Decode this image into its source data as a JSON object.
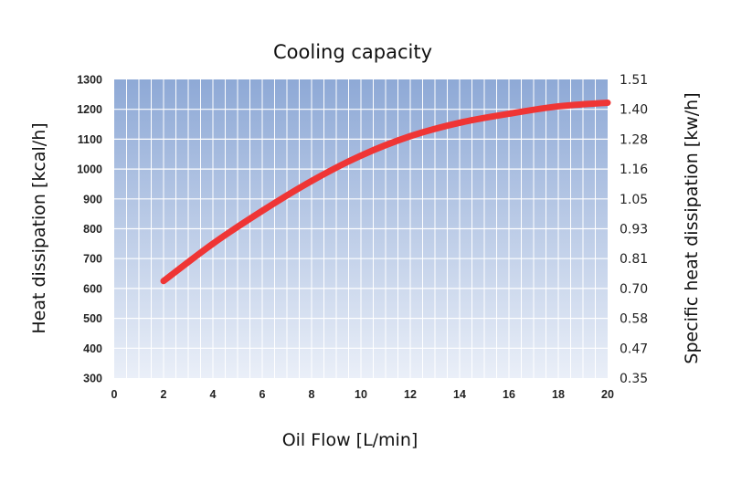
{
  "chart_data": {
    "type": "line",
    "title": "Cooling capacity",
    "xlabel": "Oil Flow [L/min]",
    "ylabel": "Heat dissipation [kcal/h]",
    "ylabel_right": "Specific heat dissipation [kw/h]",
    "xlim": [
      0,
      20
    ],
    "ylim": [
      300,
      1300
    ],
    "x_ticks": [
      "0",
      "2",
      "4",
      "6",
      "8",
      "10",
      "12",
      "14",
      "16",
      "18",
      "20"
    ],
    "y_ticks": [
      "300",
      "400",
      "500",
      "600",
      "700",
      "800",
      "900",
      "1000",
      "1100",
      "1200",
      "1300"
    ],
    "y2_ticks": [
      "0.35",
      "0.47",
      "0.58",
      "0.70",
      "0.81",
      "0.93",
      "1.05",
      "1.16",
      "1.28",
      "1.40",
      "1.51"
    ],
    "grid": true,
    "x": [
      2,
      4,
      6,
      8,
      10,
      12,
      14,
      16,
      18,
      20
    ],
    "series": [
      {
        "values": [
          625,
          750,
          860,
          960,
          1045,
          1110,
          1155,
          1185,
          1210,
          1222
        ],
        "color": "#ef3535"
      }
    ],
    "colors": {
      "background_top": "#8ea9d6",
      "background_bottom": "#eaeff8",
      "grid": "#ffffff"
    }
  }
}
